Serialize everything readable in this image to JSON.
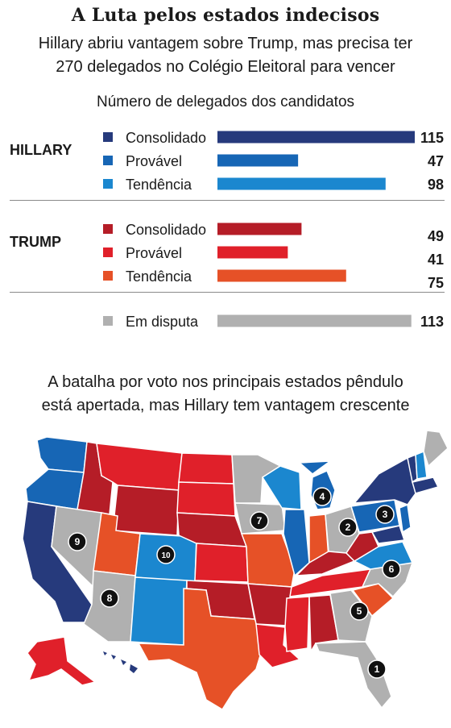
{
  "title": "A Luta pelos estados indecisos",
  "subtitle_line1": "Hillary abriu vantagem sobre Trump, mas precisa ter",
  "subtitle_line2": "270 delegados no Colégio Eleitoral para vencer",
  "colors": {
    "hillary_consolidado": "#263a7c",
    "hillary_provavel": "#1766b5",
    "hillary_tendencia": "#1b87cf",
    "trump_consolidado": "#b51d27",
    "trump_provavel": "#e0202a",
    "trump_tendencia": "#e65127",
    "em_disputa": "#b0b0b0"
  },
  "chart_data": {
    "type": "bar",
    "title": "Número de delegados dos candidatos",
    "orientation": "horizontal",
    "groups": [
      {
        "name": "HILLARY",
        "items": [
          {
            "label": "Consolidado",
            "value": 115,
            "color": "#263a7c"
          },
          {
            "label": "Provável",
            "value": 47,
            "color": "#1766b5"
          },
          {
            "label": "Tendência",
            "value": 98,
            "color": "#1b87cf"
          }
        ]
      },
      {
        "name": "TRUMP",
        "items": [
          {
            "label": "Consolidado",
            "value": 49,
            "color": "#b51d27"
          },
          {
            "label": "Provável",
            "value": 41,
            "color": "#e0202a"
          },
          {
            "label": "Tendência",
            "value": 75,
            "color": "#e65127"
          }
        ]
      },
      {
        "name": "",
        "items": [
          {
            "label": "Em disputa",
            "value": 113,
            "color": "#b0b0b0"
          }
        ]
      }
    ],
    "xlim": [
      0,
      115
    ]
  },
  "map": {
    "title_line1": "A batalha por voto nos principais estados pêndulo",
    "title_line2": "está apertada, mas Hillary tem vantagem crescente",
    "markers": [
      "1",
      "2",
      "3",
      "4",
      "5",
      "6",
      "7",
      "8",
      "9",
      "10"
    ]
  }
}
